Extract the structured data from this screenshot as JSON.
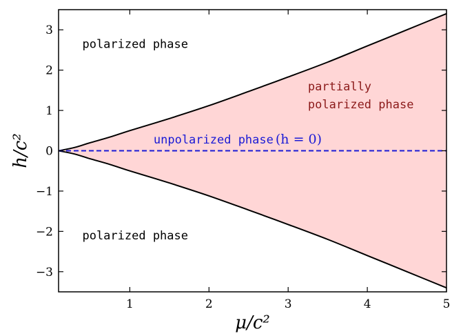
{
  "chart_data": {
    "type": "area",
    "xlabel": "μ/c²",
    "ylabel": "h/c²",
    "xlim": [
      0.1,
      5
    ],
    "ylim": [
      -3.5,
      3.5
    ],
    "x_ticks": [
      1,
      2,
      3,
      4,
      5
    ],
    "x_tick_labels": [
      "1",
      "2",
      "3",
      "4",
      "5"
    ],
    "y_ticks": [
      -3,
      -2,
      -1,
      0,
      1,
      2,
      3
    ],
    "y_tick_labels": [
      "−3",
      "−2",
      "−1",
      "0",
      "1",
      "2",
      "3"
    ],
    "grid": false,
    "series": [
      {
        "x": [
          0.1,
          0.3,
          0.5,
          0.75,
          1,
          1.5,
          2,
          2.5,
          3,
          3.5,
          4,
          4.5,
          5
        ],
        "y": [
          0,
          0.08,
          0.2,
          0.34,
          0.5,
          0.8,
          1.12,
          1.47,
          1.83,
          2.2,
          2.6,
          3.0,
          3.4
        ]
      },
      {
        "x": [
          0.1,
          0.3,
          0.5,
          0.75,
          1,
          1.5,
          2,
          2.5,
          3,
          3.5,
          4,
          4.5,
          5
        ],
        "y": [
          0,
          -0.08,
          -0.2,
          -0.34,
          -0.5,
          -0.8,
          -1.12,
          -1.47,
          -1.83,
          -2.2,
          -2.6,
          -3.0,
          -3.4
        ]
      },
      {
        "x": [
          0.1,
          5
        ],
        "y": [
          0,
          0
        ]
      }
    ],
    "annotations": [
      {
        "text": "polarized phase",
        "x": 0.4,
        "y": 2.55,
        "color": "#000000"
      },
      {
        "text": "polarized phase",
        "x": 0.4,
        "y": -2.2,
        "color": "#000000"
      },
      {
        "text": "partially",
        "x": 3.25,
        "y": 1.5,
        "color": "#8b1a1a"
      },
      {
        "text": "polarized phase",
        "x": 3.25,
        "y": 1.05,
        "color": "#8b1a1a"
      },
      {
        "text": "unpolarized phase",
        "x": 1.3,
        "y": 0.18,
        "color": "#1a1ad6",
        "suffix": "(h = 0)"
      }
    ],
    "colors": {
      "fill": "#ffd6d6",
      "boundary": "#000000",
      "dashed": "#1a1ad6"
    }
  }
}
